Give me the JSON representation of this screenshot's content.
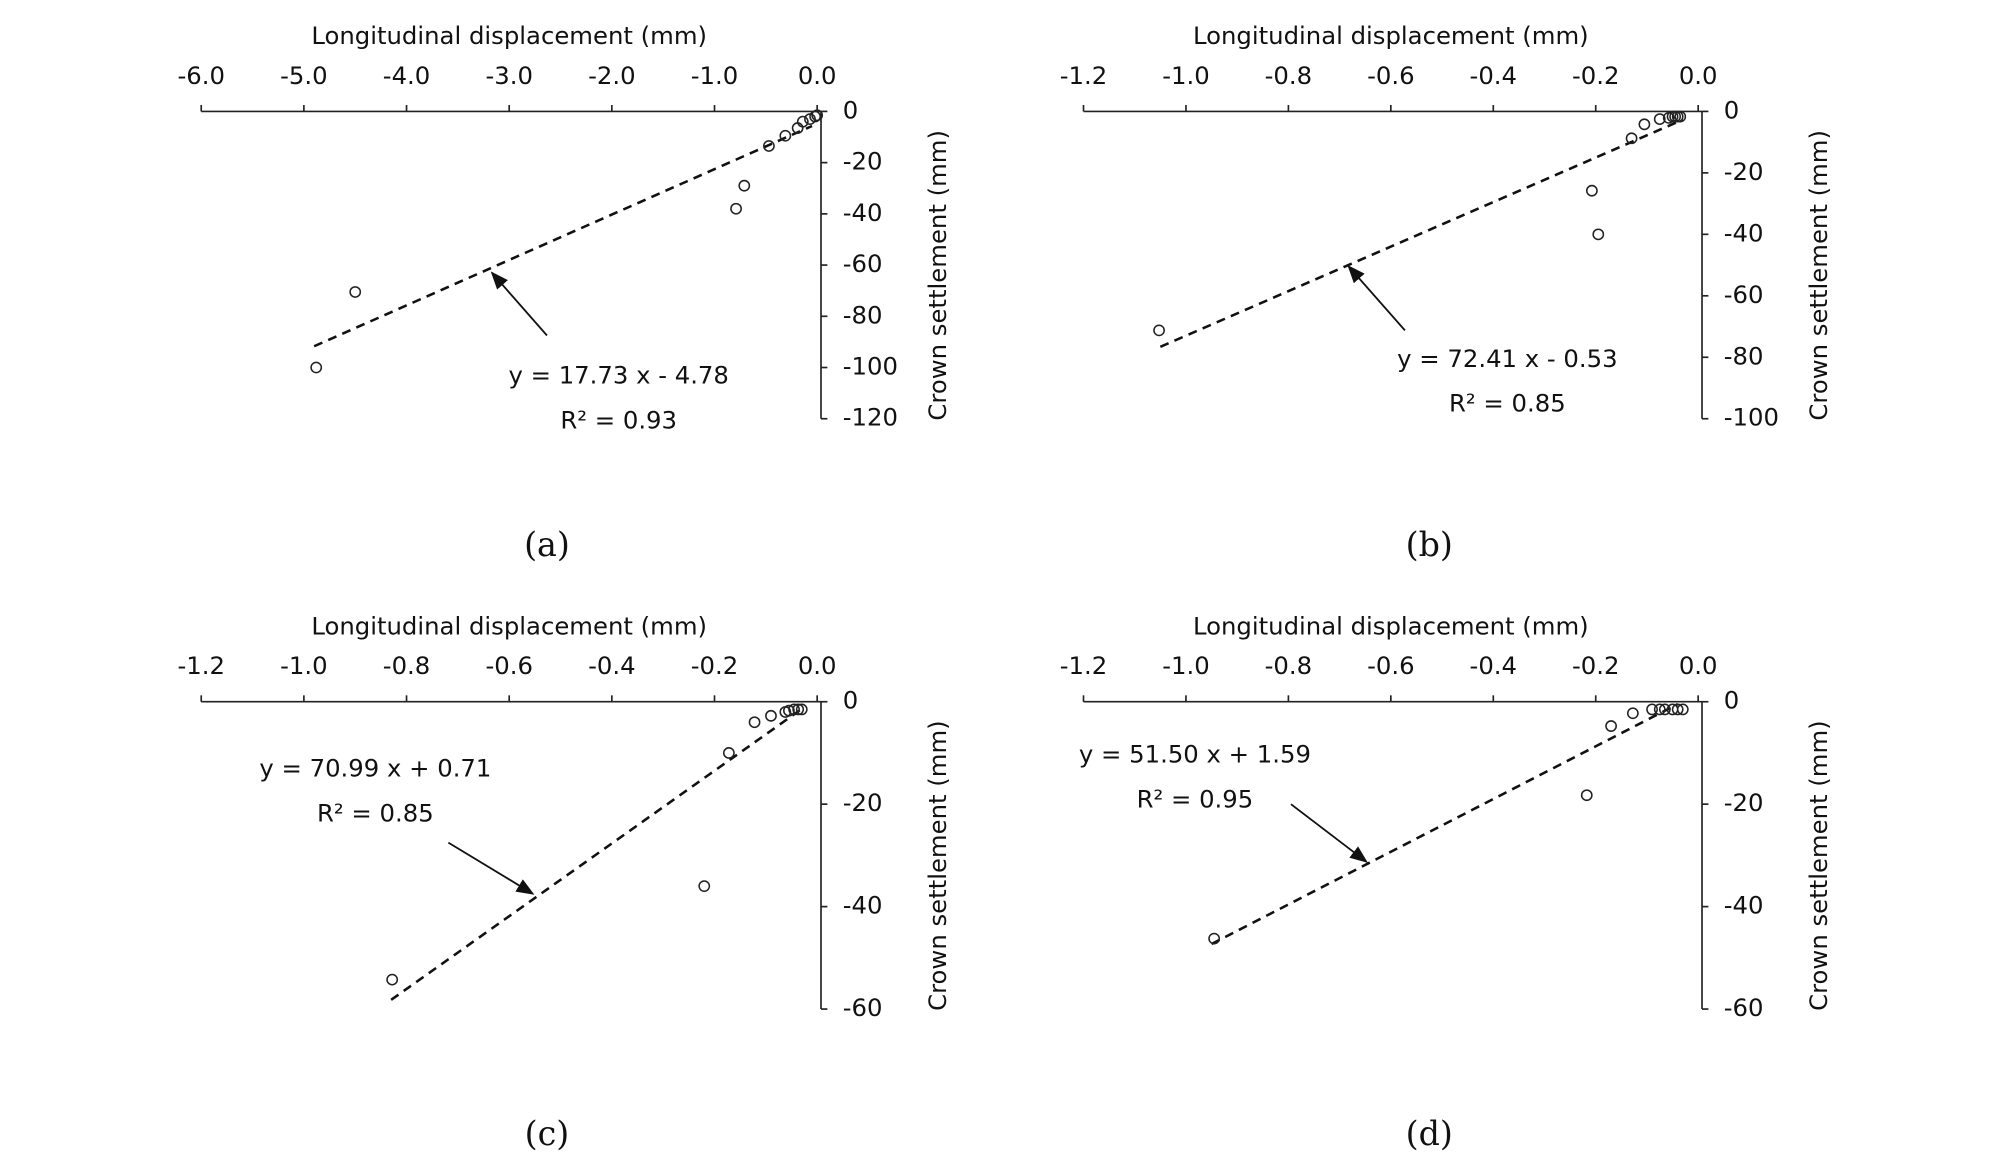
{
  "chart_data": [
    {
      "type": "scatter",
      "x_label": "Longitudinal  displacement (mm)",
      "y_label": "Crown settlement (mm)",
      "caption": "(a)",
      "equation": "y = 17.73 x - 4.78",
      "r2": "R² = 0.93",
      "xlim": [
        -6,
        0
      ],
      "ylim": [
        -120,
        0
      ],
      "xticks": [
        {
          "value": -6,
          "label": "-6.0"
        },
        {
          "value": -5,
          "label": "-5.0"
        },
        {
          "value": -4,
          "label": "-4.0"
        },
        {
          "value": -3,
          "label": "-3.0"
        },
        {
          "value": -2,
          "label": "-2.0"
        },
        {
          "value": -1,
          "label": "-1.0"
        },
        {
          "value": 0,
          "label": "0.0"
        }
      ],
      "yticks": [
        0,
        -20,
        -40,
        -60,
        -80,
        -100,
        -120
      ],
      "x": [
        -4.88,
        -4.5,
        -0.79,
        -0.71,
        -0.47,
        -0.31,
        -0.19,
        -0.14,
        -0.07,
        -0.02,
        0
      ],
      "y": [
        -100,
        -70.5,
        -38,
        -29,
        -13.5,
        -9.5,
        -6.5,
        -4,
        -3,
        -2,
        -1.5
      ],
      "trendline": {
        "x": [
          -4.9,
          -0.05
        ],
        "y": [
          -91.7,
          -5.7
        ]
      }
    },
    {
      "type": "scatter",
      "x_label": "Longitudinal  displacement (mm)",
      "y_label": "Crown settlement (mm)",
      "caption": "(b)",
      "equation": "y = 72.41 x - 0.53",
      "r2": "R² = 0.85",
      "xlim": [
        -1.2,
        0
      ],
      "ylim": [
        -100,
        0
      ],
      "xticks": [
        {
          "value": -1.2,
          "label": "-1.2"
        },
        {
          "value": -1,
          "label": "-1.0"
        },
        {
          "value": -0.8,
          "label": "-0.8"
        },
        {
          "value": -0.6,
          "label": "-0.6"
        },
        {
          "value": -0.4,
          "label": "-0.4"
        },
        {
          "value": -0.2,
          "label": "-0.2"
        },
        {
          "value": 0,
          "label": "0.0"
        }
      ],
      "yticks": [
        0,
        -20,
        -40,
        -60,
        -80,
        -100
      ],
      "x": [
        -1.0525,
        -0.2075,
        -0.195,
        -0.13,
        -0.105,
        -0.075,
        -0.0575,
        -0.05,
        -0.045,
        -0.04,
        -0.035
      ],
      "y": [
        -71.25,
        -25.8,
        -40,
        -8.75,
        -4.2,
        -2.5,
        -2.1,
        -1.7,
        -1.7,
        -1.7,
        -1.7
      ],
      "trendline": {
        "x": [
          -1.05,
          -0.03
        ],
        "y": [
          -76.6,
          -2.7
        ]
      }
    },
    {
      "type": "scatter",
      "x_label": "Longitudinal  displacement (mm)",
      "y_label": "Crown settlement (mm)",
      "caption": "(c)",
      "equation": "y = 70.99 x + 0.71",
      "r2": "R² = 0.85",
      "xlim": [
        -1.2,
        0
      ],
      "ylim": [
        -60,
        0
      ],
      "xticks": [
        {
          "value": -1.2,
          "label": "-1.2"
        },
        {
          "value": -1,
          "label": "-1.0"
        },
        {
          "value": -0.8,
          "label": "-0.8"
        },
        {
          "value": -0.6,
          "label": "-0.6"
        },
        {
          "value": -0.4,
          "label": "-0.4"
        },
        {
          "value": -0.2,
          "label": "-0.2"
        },
        {
          "value": 0,
          "label": "0.0"
        }
      ],
      "yticks": [
        0,
        -20,
        -40,
        -60
      ],
      "x": [
        -0.828,
        -0.22,
        -0.172,
        -0.122,
        -0.09,
        -0.062,
        -0.055,
        -0.045,
        -0.037,
        -0.03
      ],
      "y": [
        -54.25,
        -36,
        -10,
        -4,
        -2.75,
        -2,
        -1.75,
        -1.5,
        -1.5,
        -1.5
      ],
      "trendline": {
        "x": [
          -0.83,
          -0.03
        ],
        "y": [
          -58.2,
          -1.4
        ]
      }
    },
    {
      "type": "scatter",
      "x_label": "Longitudinal  displacement (mm)",
      "y_label": "Crown settlement (mm)",
      "caption": "(d)",
      "equation": "y = 51.50 x + 1.59",
      "r2": "R² = 0.95",
      "xlim": [
        -1.2,
        0
      ],
      "ylim": [
        -60,
        0
      ],
      "xticks": [
        {
          "value": -1.2,
          "label": "-1.2"
        },
        {
          "value": -1,
          "label": "-1.0"
        },
        {
          "value": -0.8,
          "label": "-0.8"
        },
        {
          "value": -0.6,
          "label": "-0.6"
        },
        {
          "value": -0.4,
          "label": "-0.4"
        },
        {
          "value": -0.2,
          "label": "-0.2"
        },
        {
          "value": 0,
          "label": "0.0"
        }
      ],
      "yticks": [
        0,
        -20,
        -40,
        -60
      ],
      "x": [
        -0.945,
        -0.2175,
        -0.17,
        -0.1275,
        -0.09,
        -0.075,
        -0.065,
        -0.05,
        -0.04,
        -0.03
      ],
      "y": [
        -46.25,
        -18.25,
        -4.75,
        -2.25,
        -1.5,
        -1.5,
        -1.5,
        -1.5,
        -1.5,
        -1.5
      ],
      "trendline": {
        "x": [
          -0.95,
          -0.04
        ],
        "y": [
          -47.3,
          -0.47
        ]
      }
    }
  ]
}
